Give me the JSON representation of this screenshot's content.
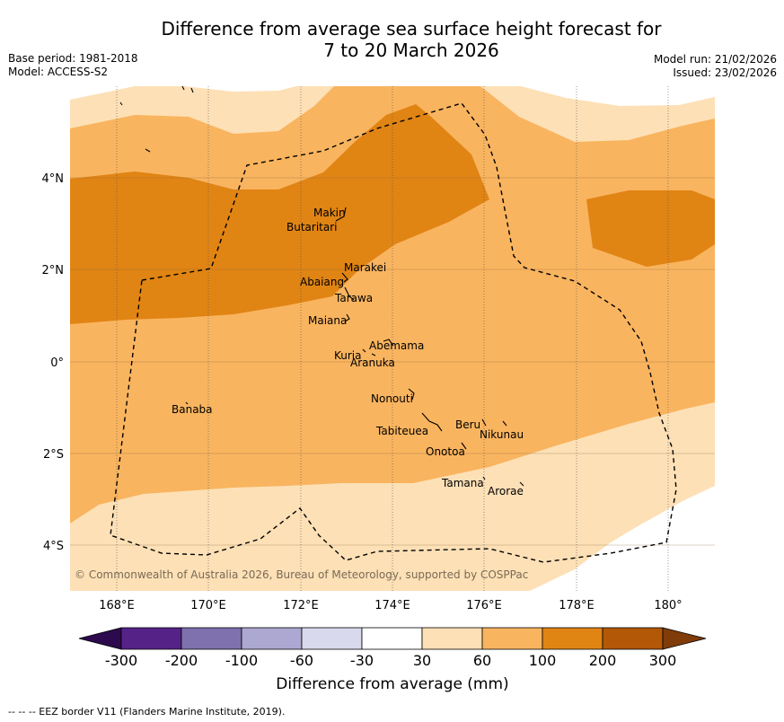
{
  "title_line1": "Difference from average sea surface height forecast for",
  "title_line2": "7 to 20 March 2026",
  "base_period": "Base period: 1981-2018",
  "model": "Model: ACCESS-S2",
  "model_run": "Model run: 21/02/2026",
  "issued": "Issued: 23/02/2026",
  "copyright": "© Commonwealth of Australia 2026, Bureau of Meteorology, supported by COSPPac",
  "lon_labels": [
    "168°E",
    "170°E",
    "172°E",
    "174°E",
    "176°E",
    "178°E",
    "180°"
  ],
  "lat_labels": [
    "4°N",
    "2°N",
    "0°",
    "2°S",
    "4°S"
  ],
  "islands": [
    {
      "name": "Makin"
    },
    {
      "name": "Butaritari"
    },
    {
      "name": "Marakei"
    },
    {
      "name": "Abaiang"
    },
    {
      "name": "Tarawa"
    },
    {
      "name": "Maiana"
    },
    {
      "name": "Abemama"
    },
    {
      "name": "Kuria"
    },
    {
      "name": "Aranuka"
    },
    {
      "name": "Nonouti"
    },
    {
      "name": "Banaba"
    },
    {
      "name": "Tabiteuea"
    },
    {
      "name": "Beru"
    },
    {
      "name": "Nikunau"
    },
    {
      "name": "Onotoa"
    },
    {
      "name": "Tamana"
    },
    {
      "name": "Arorae"
    }
  ],
  "colorbar": {
    "ticks": [
      "-300",
      "-200",
      "-100",
      "-60",
      "-30",
      "30",
      "60",
      "100",
      "200",
      "300"
    ],
    "colors": [
      "#552288",
      "#7f71ad",
      "#aca8d1",
      "#d8d9ec",
      "#ffffff",
      "#fde0b6",
      "#f9b45f",
      "#e08414",
      "#b25806"
    ],
    "under_color": "#2d0a4e",
    "over_color": "#7f3b08",
    "label": "Difference from average (mm)"
  },
  "legend_note": "-- -- -- EEZ border V11 (Flanders Marine Institute, 2019)."
}
